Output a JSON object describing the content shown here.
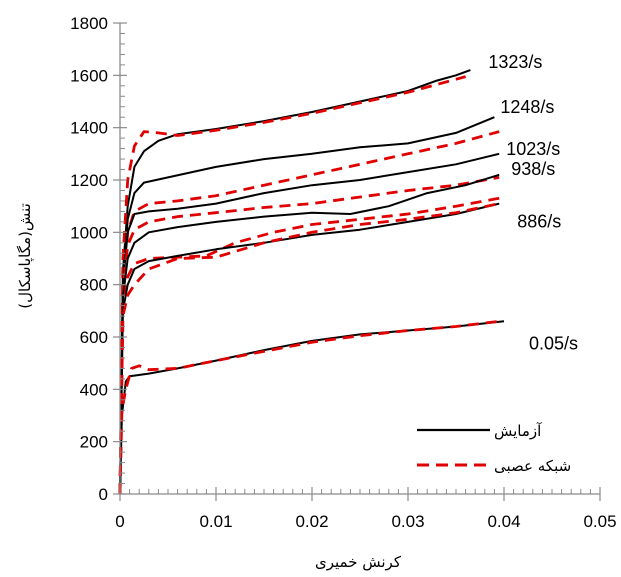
{
  "chart_data": {
    "type": "line",
    "title": "",
    "xlabel": "کرنش خمیری",
    "ylabel": "تنش(مگاپاسکال)",
    "xlim": [
      0,
      0.05
    ],
    "ylim": [
      0,
      1800
    ],
    "x_ticks": [
      "0",
      "0.01",
      "0.02",
      "0.03",
      "0.04",
      "0.05"
    ],
    "y_ticks": [
      "0",
      "200",
      "400",
      "600",
      "800",
      "1000",
      "1200",
      "1400",
      "1600",
      "1800"
    ],
    "grid": false,
    "legend_position": "bottom-right",
    "legend": [
      {
        "label": "آزمایش",
        "style": "solid",
        "color": "#000000"
      },
      {
        "label": "شبکه عصبی",
        "style": "dashed",
        "color": "#e00000"
      }
    ],
    "series": [
      {
        "rate_label": "1323/s",
        "kind": "experiment",
        "points": [
          [
            0,
            0
          ],
          [
            0.0003,
            850
          ],
          [
            0.0008,
            1100
          ],
          [
            0.0015,
            1250
          ],
          [
            0.0025,
            1310
          ],
          [
            0.004,
            1350
          ],
          [
            0.006,
            1375
          ],
          [
            0.01,
            1395
          ],
          [
            0.015,
            1425
          ],
          [
            0.02,
            1460
          ],
          [
            0.025,
            1500
          ],
          [
            0.03,
            1540
          ],
          [
            0.033,
            1580
          ],
          [
            0.035,
            1600
          ],
          [
            0.0365,
            1620
          ]
        ]
      },
      {
        "rate_label": "1323/s",
        "kind": "neural-network",
        "points": [
          [
            0,
            0
          ],
          [
            0.0003,
            900
          ],
          [
            0.0008,
            1200
          ],
          [
            0.0015,
            1330
          ],
          [
            0.0025,
            1385
          ],
          [
            0.004,
            1380
          ],
          [
            0.006,
            1370
          ],
          [
            0.01,
            1390
          ],
          [
            0.015,
            1420
          ],
          [
            0.02,
            1455
          ],
          [
            0.025,
            1495
          ],
          [
            0.03,
            1535
          ],
          [
            0.034,
            1575
          ],
          [
            0.036,
            1595
          ]
        ]
      },
      {
        "rate_label": "1248/s",
        "kind": "experiment",
        "points": [
          [
            0,
            0
          ],
          [
            0.0003,
            800
          ],
          [
            0.0008,
            1050
          ],
          [
            0.0015,
            1150
          ],
          [
            0.0025,
            1190
          ],
          [
            0.005,
            1210
          ],
          [
            0.01,
            1250
          ],
          [
            0.015,
            1280
          ],
          [
            0.02,
            1300
          ],
          [
            0.025,
            1325
          ],
          [
            0.03,
            1340
          ],
          [
            0.035,
            1380
          ],
          [
            0.039,
            1440
          ]
        ]
      },
      {
        "rate_label": "1248/s",
        "kind": "neural-network",
        "points": [
          [
            0,
            0
          ],
          [
            0.0003,
            750
          ],
          [
            0.0008,
            1000
          ],
          [
            0.0015,
            1080
          ],
          [
            0.003,
            1110
          ],
          [
            0.006,
            1120
          ],
          [
            0.01,
            1140
          ],
          [
            0.015,
            1180
          ],
          [
            0.02,
            1220
          ],
          [
            0.025,
            1260
          ],
          [
            0.03,
            1300
          ],
          [
            0.035,
            1340
          ],
          [
            0.0395,
            1385
          ]
        ]
      },
      {
        "rate_label": "1023/s",
        "kind": "experiment",
        "points": [
          [
            0,
            0
          ],
          [
            0.0003,
            800
          ],
          [
            0.0008,
            1000
          ],
          [
            0.0015,
            1070
          ],
          [
            0.003,
            1080
          ],
          [
            0.006,
            1090
          ],
          [
            0.01,
            1110
          ],
          [
            0.015,
            1150
          ],
          [
            0.02,
            1180
          ],
          [
            0.025,
            1200
          ],
          [
            0.03,
            1230
          ],
          [
            0.035,
            1260
          ],
          [
            0.0395,
            1300
          ]
        ]
      },
      {
        "rate_label": "1023/s",
        "kind": "neural-network",
        "points": [
          [
            0,
            0
          ],
          [
            0.0003,
            780
          ],
          [
            0.0008,
            950
          ],
          [
            0.0015,
            1010
          ],
          [
            0.003,
            1040
          ],
          [
            0.006,
            1060
          ],
          [
            0.01,
            1075
          ],
          [
            0.015,
            1095
          ],
          [
            0.02,
            1110
          ],
          [
            0.025,
            1135
          ],
          [
            0.03,
            1160
          ],
          [
            0.035,
            1180
          ],
          [
            0.0395,
            1210
          ]
        ]
      },
      {
        "rate_label": "938/s",
        "kind": "experiment",
        "points": [
          [
            0,
            0
          ],
          [
            0.0003,
            750
          ],
          [
            0.0008,
            900
          ],
          [
            0.0015,
            960
          ],
          [
            0.003,
            1000
          ],
          [
            0.006,
            1020
          ],
          [
            0.01,
            1040
          ],
          [
            0.015,
            1060
          ],
          [
            0.02,
            1075
          ],
          [
            0.024,
            1070
          ],
          [
            0.028,
            1100
          ],
          [
            0.032,
            1150
          ],
          [
            0.036,
            1180
          ],
          [
            0.0395,
            1220
          ]
        ]
      },
      {
        "rate_label": "938/s",
        "kind": "neural-network",
        "points": [
          [
            0,
            0
          ],
          [
            0.0003,
            700
          ],
          [
            0.0008,
            830
          ],
          [
            0.0015,
            880
          ],
          [
            0.003,
            900
          ],
          [
            0.006,
            905
          ],
          [
            0.009,
            910
          ],
          [
            0.012,
            960
          ],
          [
            0.016,
            1000
          ],
          [
            0.02,
            1030
          ],
          [
            0.025,
            1050
          ],
          [
            0.03,
            1070
          ],
          [
            0.035,
            1100
          ],
          [
            0.0395,
            1130
          ]
        ]
      },
      {
        "rate_label": "886/s",
        "kind": "experiment",
        "points": [
          [
            0,
            0
          ],
          [
            0.0003,
            700
          ],
          [
            0.0008,
            800
          ],
          [
            0.0015,
            860
          ],
          [
            0.003,
            890
          ],
          [
            0.006,
            910
          ],
          [
            0.01,
            935
          ],
          [
            0.015,
            960
          ],
          [
            0.02,
            990
          ],
          [
            0.025,
            1010
          ],
          [
            0.03,
            1040
          ],
          [
            0.035,
            1070
          ],
          [
            0.0395,
            1110
          ]
        ]
      },
      {
        "rate_label": "886/s",
        "kind": "neural-network",
        "points": [
          [
            0,
            0
          ],
          [
            0.0003,
            680
          ],
          [
            0.0008,
            760
          ],
          [
            0.0015,
            800
          ],
          [
            0.003,
            860
          ],
          [
            0.006,
            900
          ],
          [
            0.01,
            905
          ],
          [
            0.015,
            960
          ],
          [
            0.02,
            1000
          ],
          [
            0.025,
            1030
          ],
          [
            0.03,
            1050
          ],
          [
            0.035,
            1075
          ],
          [
            0.0395,
            1110
          ]
        ]
      },
      {
        "rate_label": "0.05/s",
        "kind": "experiment",
        "points": [
          [
            0,
            0
          ],
          [
            0.0002,
            300
          ],
          [
            0.0006,
            430
          ],
          [
            0.001,
            450
          ],
          [
            0.003,
            460
          ],
          [
            0.006,
            480
          ],
          [
            0.01,
            510
          ],
          [
            0.015,
            550
          ],
          [
            0.02,
            585
          ],
          [
            0.025,
            610
          ],
          [
            0.03,
            625
          ],
          [
            0.035,
            640
          ],
          [
            0.04,
            660
          ]
        ]
      },
      {
        "rate_label": "0.05/s",
        "kind": "neural-network",
        "points": [
          [
            0,
            0
          ],
          [
            0.0002,
            320
          ],
          [
            0.0006,
            400
          ],
          [
            0.0012,
            480
          ],
          [
            0.002,
            490
          ],
          [
            0.003,
            475
          ],
          [
            0.006,
            480
          ],
          [
            0.01,
            510
          ],
          [
            0.015,
            545
          ],
          [
            0.02,
            580
          ],
          [
            0.025,
            605
          ],
          [
            0.03,
            625
          ],
          [
            0.035,
            640
          ],
          [
            0.0395,
            660
          ]
        ]
      }
    ]
  }
}
